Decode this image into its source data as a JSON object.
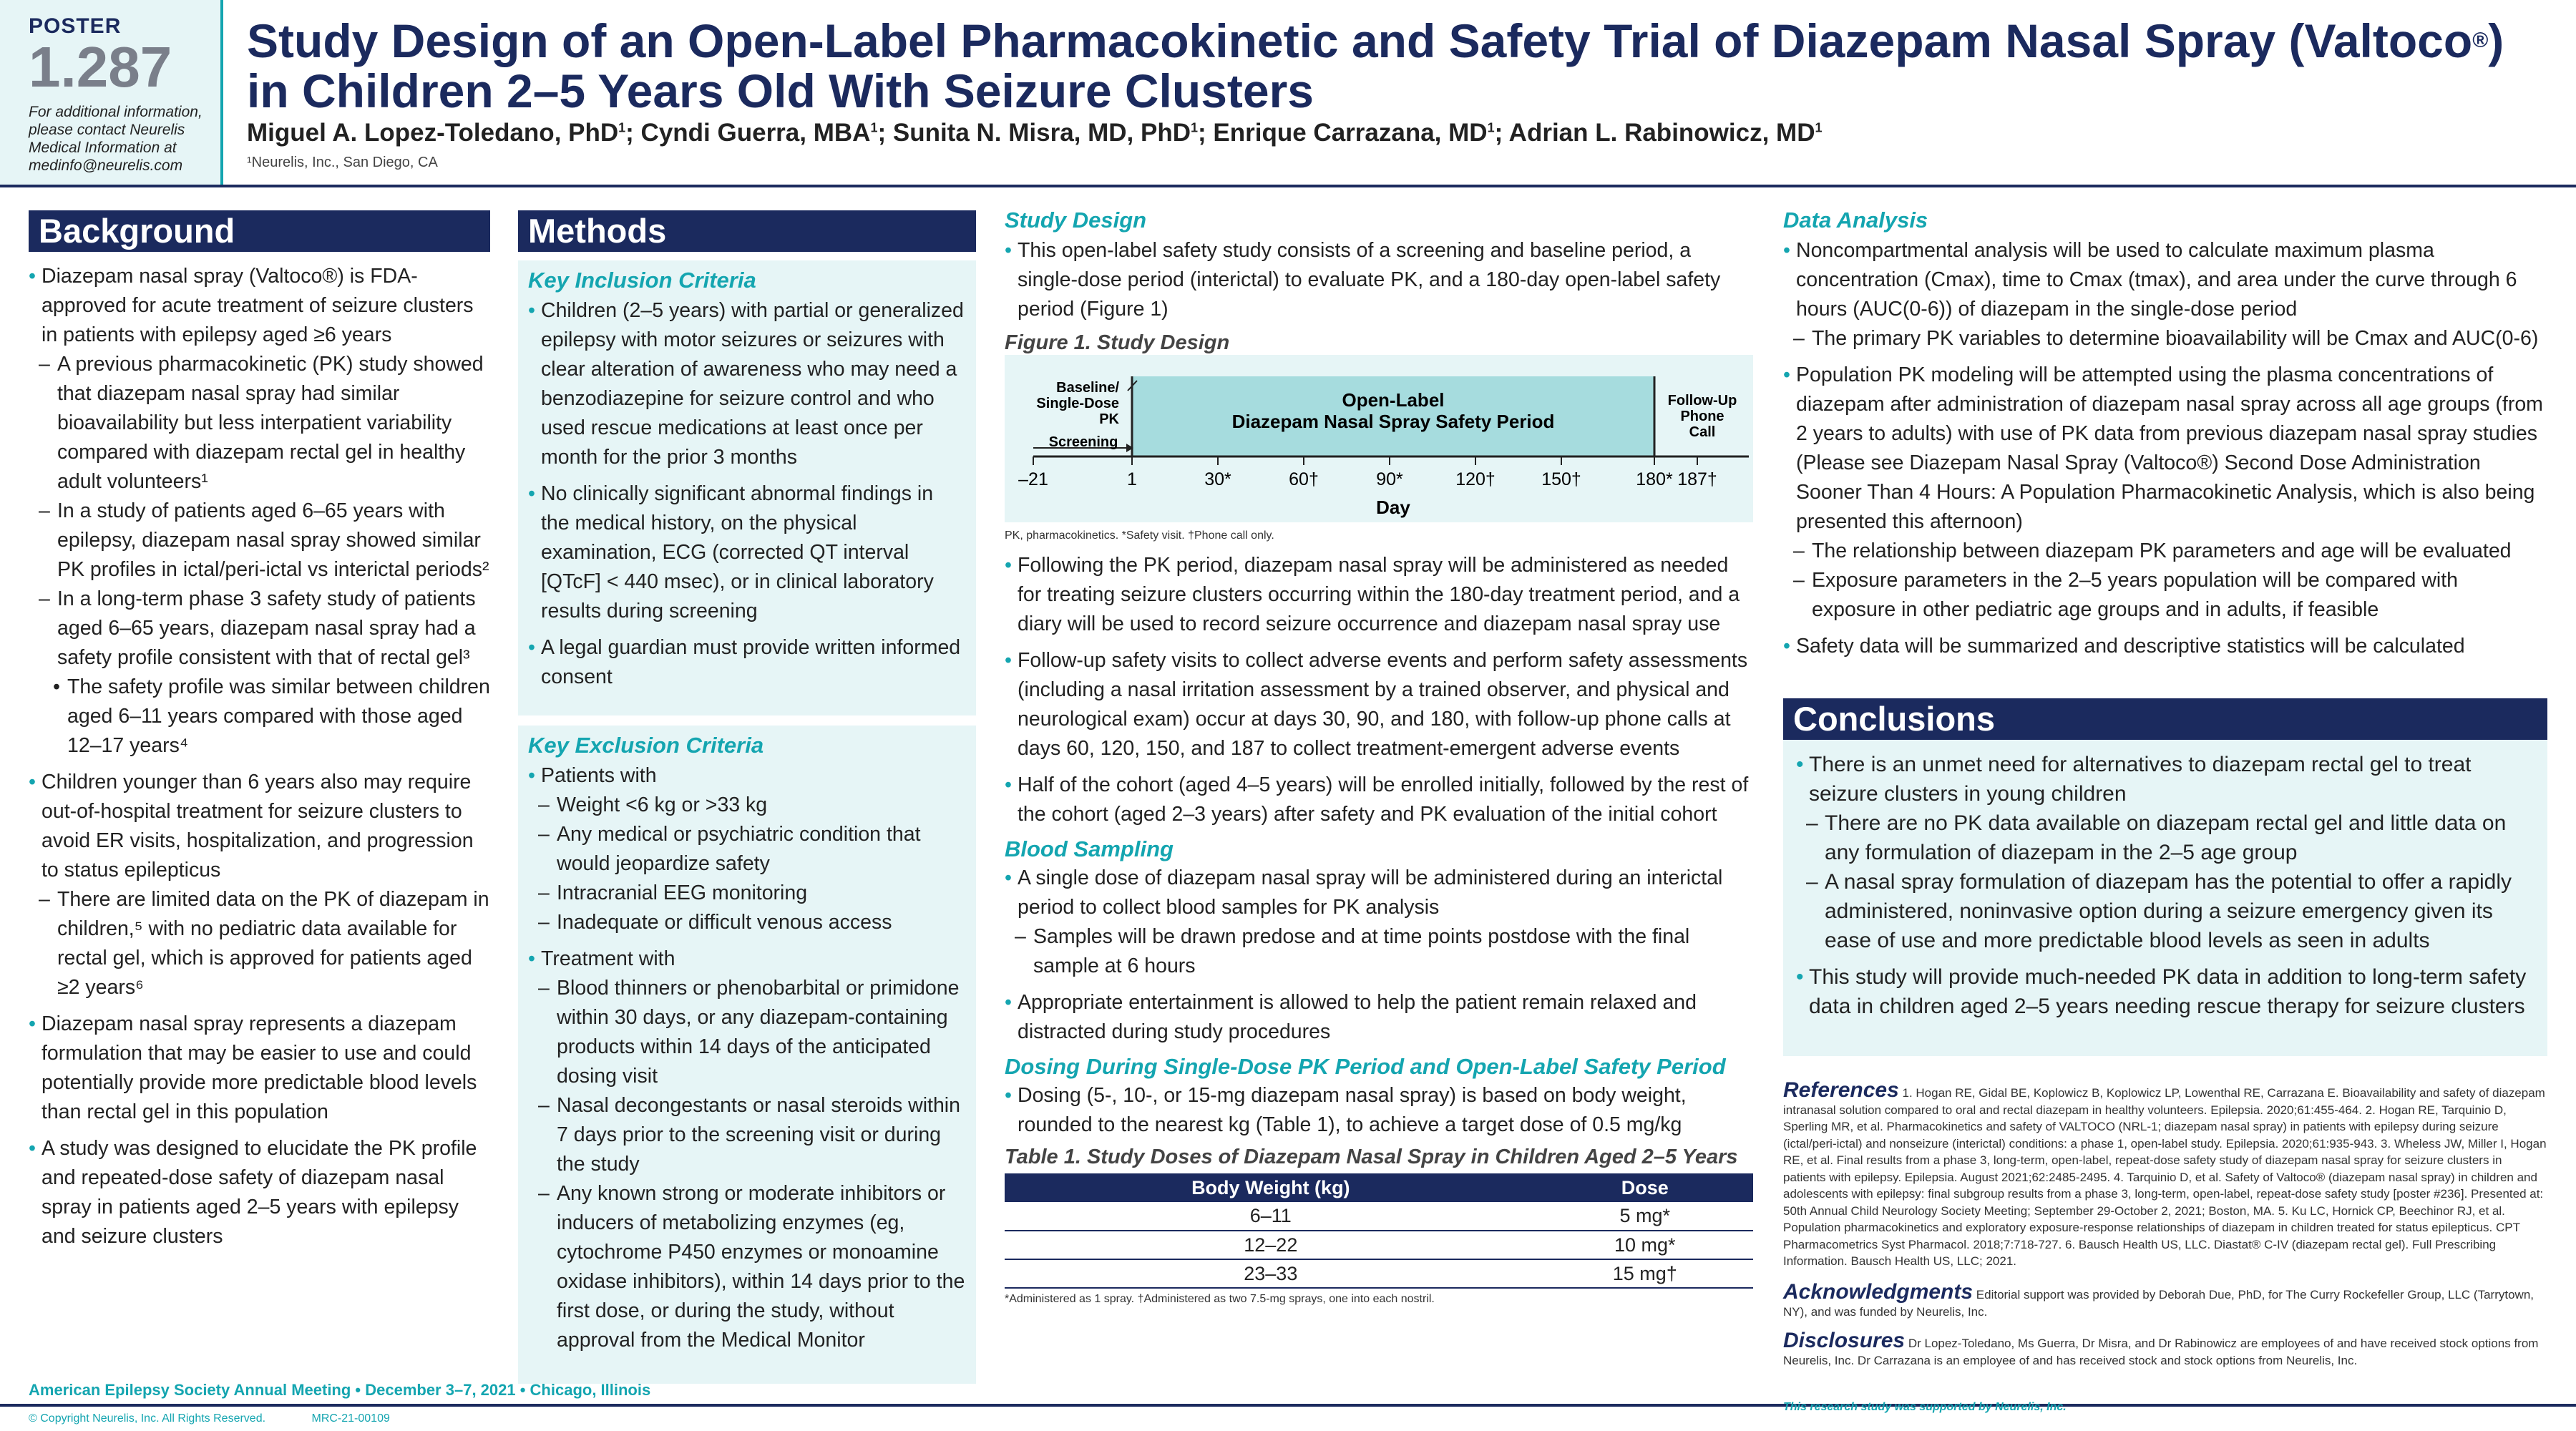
{
  "poster": {
    "label": "POSTER",
    "number": "1.287",
    "contact": "For additional information, please contact Neurelis Medical Information at medinfo@neurelis.com"
  },
  "title_line1": "Study Design of an Open-Label Pharmacokinetic and Safety Trial of Diazepam Nasal Spray (Valtoco",
  "title_reg": "®",
  "title_end": ")",
  "title_line2": "in Children 2–5 Years Old With Seizure Clusters",
  "authors": [
    "Miguel A. Lopez-Toledano, PhD",
    "Cyndi Guerra, MBA",
    "Sunita N. Misra, MD, PhD",
    "Enrique Carrazana, MD",
    "Adrian L. Rabinowicz, MD"
  ],
  "author_sup": "1",
  "affiliation": "¹Neurelis, Inc., San Diego, CA",
  "background": {
    "heading": "Background",
    "items": [
      {
        "t": "b",
        "x": "Diazepam nasal spray (Valtoco®) is FDA-approved for acute treatment of seizure clusters in patients with epilepsy aged ≥6 years"
      },
      {
        "t": "d",
        "x": "A previous pharmacokinetic (PK) study showed that diazepam nasal spray had similar bioavailability but less interpatient variability compared with diazepam rectal gel in healthy adult volunteers¹"
      },
      {
        "t": "d",
        "x": "In a study of patients aged 6–65 years with epilepsy, diazepam nasal spray showed similar PK profiles in ictal/peri-ictal vs interictal periods²"
      },
      {
        "t": "d",
        "x": "In a long-term phase 3 safety study of patients aged 6–65 years, diazepam nasal spray had a safety profile consistent with that of rectal gel³"
      },
      {
        "t": "s",
        "x": "The safety profile was similar between children aged 6–11 years compared with those aged 12–17 years⁴"
      },
      {
        "t": "b",
        "x": "Children younger than 6 years also may require out-of-hospital treatment for seizure clusters to avoid ER visits, hospitalization, and progression to status epilepticus"
      },
      {
        "t": "d",
        "x": "There are limited data on the PK of diazepam in children,⁵ with no pediatric data available for rectal gel, which is approved for patients aged ≥2 years⁶"
      },
      {
        "t": "b",
        "x": "Diazepam nasal spray represents a diazepam formulation that may be easier to use and could potentially provide more predictable blood levels than rectal gel in this population"
      },
      {
        "t": "b",
        "x": "A study was designed to elucidate the PK profile and repeated-dose safety of diazepam nasal spray in patients aged 2–5 years with epilepsy and seizure clusters"
      }
    ]
  },
  "methods": {
    "heading": "Methods",
    "inclusion_heading": "Key Inclusion Criteria",
    "inclusion": [
      {
        "t": "b",
        "x": "Children (2–5 years) with partial or generalized epilepsy with motor seizures or seizures with clear alteration of awareness who may need a benzodiazepine for seizure control and who used rescue medications at least once per month for the prior 3 months"
      },
      {
        "t": "b",
        "x": "No clinically significant abnormal findings in the medical history, on the physical examination, ECG (corrected QT interval [QTcF] < 440 msec), or in clinical laboratory results during screening"
      },
      {
        "t": "b",
        "x": "A legal guardian must provide written informed consent"
      }
    ],
    "exclusion_heading": "Key Exclusion Criteria",
    "exclusion": [
      {
        "t": "b",
        "x": "Patients with"
      },
      {
        "t": "d",
        "x": "Weight <6 kg or >33 kg"
      },
      {
        "t": "d",
        "x": "Any medical or psychiatric condition that would jeopardize safety"
      },
      {
        "t": "d",
        "x": "Intracranial EEG monitoring"
      },
      {
        "t": "d",
        "x": "Inadequate or difficult venous access"
      },
      {
        "t": "b",
        "x": "Treatment with"
      },
      {
        "t": "d",
        "x": "Blood thinners or phenobarbital or primidone within 30 days, or any diazepam-containing products within 14 days of the anticipated dosing visit"
      },
      {
        "t": "d",
        "x": "Nasal decongestants or nasal steroids within 7 days prior to the screening visit or during the study"
      },
      {
        "t": "d",
        "x": "Any known strong or moderate inhibitors or inducers of metabolizing enzymes (eg, cytochrome P450 enzymes or monoamine oxidase inhibitors), within 14 days prior to the first dose, or during the study, without approval from the Medical Monitor"
      }
    ]
  },
  "study_design": {
    "heading": "Study Design",
    "intro": "This open-label safety study consists of a screening and baseline period, a single-dose period (interictal) to evaluate PK, and a 180-day open-label safety period (Figure 1)",
    "figure_title": "Figure 1. Study Design",
    "fig": {
      "baseline": "Baseline/ Single-Dose PK",
      "screening": "Screening",
      "period1": "Open-Label",
      "period2": "Diazepam Nasal Spray Safety Period",
      "followup": "Follow-Up Phone Call",
      "ticks": [
        "–21",
        "1",
        "30*",
        "60†",
        "90*",
        "120†",
        "150†",
        "180*",
        "187†"
      ],
      "xlabel": "Day"
    },
    "fig_note": "PK, pharmacokinetics. *Safety visit. †Phone call only.",
    "items": [
      "Following the PK period, diazepam nasal spray will be administered as needed for treating seizure clusters occurring within the 180-day treatment period, and a diary will be used to record seizure occurrence and diazepam nasal spray use",
      "Follow-up safety visits to collect adverse events and perform safety assessments (including a nasal irritation assessment by a trained observer, and physical and neurological exam) occur at days 30, 90, and 180, with follow-up phone calls at days 60, 120, 150, and 187 to collect treatment-emergent adverse events",
      "Half of the cohort (aged 4–5 years) will be enrolled initially, followed by the rest of the cohort (aged 2–3 years) after safety and PK evaluation of the initial cohort"
    ]
  },
  "blood": {
    "heading": "Blood Sampling",
    "items": [
      {
        "t": "b",
        "x": "A single dose of diazepam nasal spray will be administered during an interictal period to collect blood samples for PK analysis"
      },
      {
        "t": "d",
        "x": "Samples will be drawn predose and at time points postdose with the final sample at 6 hours"
      },
      {
        "t": "b",
        "x": "Appropriate entertainment is allowed to help the patient remain relaxed and distracted during study procedures"
      }
    ]
  },
  "dosing": {
    "heading": "Dosing During Single-Dose PK Period and Open-Label Safety Period",
    "item": "Dosing (5-, 10-, or 15-mg diazepam nasal spray) is based on body weight, rounded to the nearest kg (Table 1), to achieve a target dose of 0.5 mg/kg",
    "table_title": "Table 1. Study Doses of Diazepam Nasal Spray in Children Aged 2–5 Years",
    "cols": [
      "Body Weight (kg)",
      "Dose"
    ],
    "rows": [
      [
        "6–11",
        "5 mg*"
      ],
      [
        "12–22",
        "10 mg*"
      ],
      [
        "23–33",
        "15 mg†"
      ]
    ],
    "note": "*Administered as 1 spray. †Administered as two 7.5-mg sprays, one into each nostril."
  },
  "analysis": {
    "heading": "Data Analysis",
    "items": [
      {
        "t": "b",
        "x": "Noncompartmental analysis will be used to calculate maximum plasma concentration (Cmax), time to Cmax (tmax), and area under the curve through 6 hours (AUC(0-6)) of diazepam in the single-dose period"
      },
      {
        "t": "d",
        "x": "The primary PK variables to determine bioavailability will be Cmax and AUC(0-6)"
      },
      {
        "t": "b",
        "x": "Population PK modeling will be attempted using the plasma concentrations of diazepam after administration of diazepam nasal spray across all age groups (from 2 years to adults) with use of PK data from previous diazepam nasal spray studies (Please see Diazepam Nasal Spray (Valtoco®) Second Dose Administration Sooner Than 4 Hours: A Population Pharmacokinetic Analysis, which is also being presented this afternoon)"
      },
      {
        "t": "d",
        "x": "The relationship between diazepam PK parameters and age will be evaluated"
      },
      {
        "t": "d",
        "x": "Exposure parameters in the 2–5 years population will be compared with exposure in other pediatric age groups and in adults, if feasible"
      },
      {
        "t": "b",
        "x": "Safety data will be summarized and descriptive statistics will be calculated"
      }
    ]
  },
  "conclusions": {
    "heading": "Conclusions",
    "items": [
      {
        "t": "b",
        "x": "There is an unmet need for alternatives to diazepam rectal gel to treat seizure clusters in young children"
      },
      {
        "t": "d",
        "x": "There are no PK data available on diazepam rectal gel and little data on any formulation of diazepam in the 2–5 age group"
      },
      {
        "t": "d",
        "x": "A nasal spray formulation of diazepam has the potential to offer a rapidly administered, noninvasive option during a seizure emergency given its ease of use and more predictable blood levels as seen in adults"
      },
      {
        "t": "b",
        "x": "This study will provide much-needed PK data in addition to long-term safety data in children aged 2–5 years needing rescue therapy for seizure clusters"
      }
    ]
  },
  "references": {
    "heading": "References",
    "text": "1. Hogan RE, Gidal BE, Koplowicz B, Koplowicz LP, Lowenthal RE, Carrazana E. Bioavailability and safety of diazepam intranasal solution compared to oral and rectal diazepam in healthy volunteers. Epilepsia. 2020;61:455-464. 2. Hogan RE, Tarquinio D, Sperling MR, et al. Pharmacokinetics and safety of VALTOCO (NRL-1; diazepam nasal spray) in patients with epilepsy during seizure (ictal/peri-ictal) and nonseizure (interictal) conditions: a phase 1, open-label study. Epilepsia. 2020;61:935-943. 3. Wheless JW, Miller I, Hogan RE, et al. Final results from a phase 3, long-term, open-label, repeat-dose safety study of diazepam nasal spray for seizure clusters in patients with epilepsy. Epilepsia. August 2021;62:2485-2495. 4. Tarquinio D, et al. Safety of Valtoco® (diazepam nasal spray) in children and adolescents with epilepsy: final subgroup results from a phase 3, long-term, open-label, repeat-dose safety study [poster #236]. Presented at: 50th Annual Child Neurology Society Meeting; September 29-October 2, 2021; Boston, MA. 5. Ku LC, Hornick CP, Beechinor RJ, et al. Population pharmacokinetics and exploratory exposure-response relationships of diazepam in children treated for status epilepticus. CPT Pharmacometrics Syst Pharmacol. 2018;7:718-727. 6. Bausch Health US, LLC. Diastat® C-IV (diazepam rectal gel). Full Prescribing Information. Bausch Health US, LLC; 2021."
  },
  "acknowledgments": {
    "heading": "Acknowledgments",
    "text": "Editorial support was provided by Deborah Due, PhD, for The Curry Rockefeller Group, LLC (Tarrytown, NY), and was funded by Neurelis, Inc."
  },
  "disclosures": {
    "heading": "Disclosures",
    "text": "Dr Lopez-Toledano, Ms Guerra, Dr Misra, and Dr Rabinowicz are employees of and have received stock options from Neurelis, Inc. Dr Carrazana is an employee of and has received stock and stock options from Neurelis, Inc."
  },
  "footer": {
    "meeting": "American Epilepsy Society Annual Meeting • December 3–7, 2021 • Chicago, Illinois",
    "copyright": "© Copyright Neurelis, Inc. All Rights Reserved.",
    "code": "MRC-21-00109",
    "support": "This research study was supported by Neurelis, Inc."
  },
  "colors": {
    "navy": "#1b2a5e",
    "teal": "#14a5b0",
    "light": "#e6f5f6"
  }
}
